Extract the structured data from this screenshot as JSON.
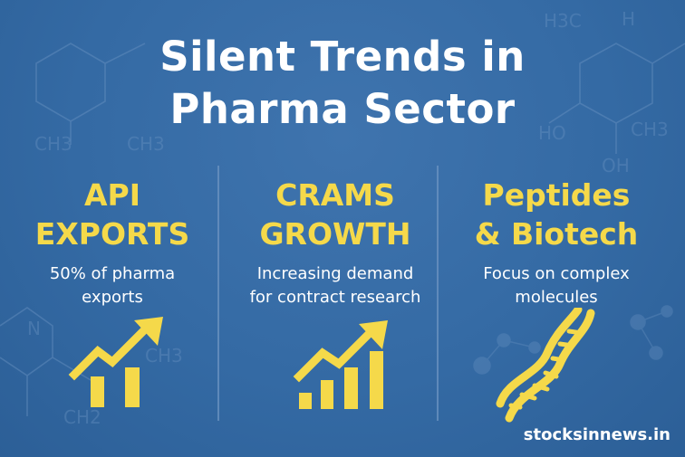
{
  "title": {
    "line1": "Silent Trends in",
    "line2": "Pharma Sector"
  },
  "columns": [
    {
      "heading_line1": "API",
      "heading_line2": "EXPORTS",
      "sub_line1": "50% of pharma",
      "sub_line2": "exports",
      "icon": "bar-chart-up-arrow-icon"
    },
    {
      "heading_line1": "CRAMS",
      "heading_line2": "GROWTH",
      "sub_line1": "Increasing demand",
      "sub_line2": "for contract research",
      "icon": "bar-chart-up-arrow-icon"
    },
    {
      "heading_line1": "Peptides",
      "heading_line2": "& Biotech",
      "sub_line1": "Focus on complex",
      "sub_line2": "molecules",
      "icon": "dna-helix-icon"
    }
  ],
  "brand": "stocksinnews.in",
  "colors": {
    "background": "#346aa4",
    "accent": "#f5d94a",
    "text": "#ffffff"
  },
  "background_glyphs": {
    "ch3": "CH3",
    "ho": "HO",
    "h3c": "H3C",
    "h": "H",
    "n": "N",
    "oh": "OH",
    "ch2": "CH2"
  }
}
